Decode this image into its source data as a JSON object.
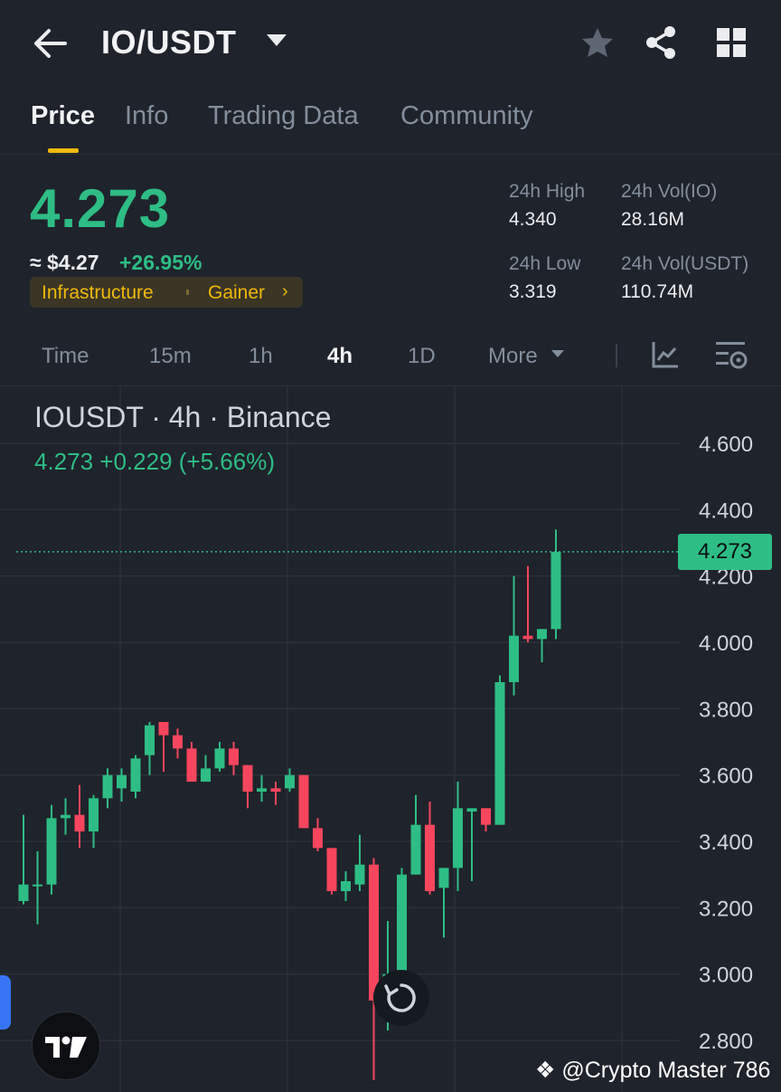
{
  "header": {
    "pair": "IO/USDT",
    "icons": [
      "back-arrow-icon",
      "star-icon",
      "share-icon",
      "grid-icon"
    ]
  },
  "tabs": [
    {
      "label": "Price",
      "active": true
    },
    {
      "label": "Info",
      "active": false
    },
    {
      "label": "Trading Data",
      "active": false
    },
    {
      "label": "Community",
      "active": false
    }
  ],
  "price_panel": {
    "last_price": "4.273",
    "usd_price": "≈ $4.27",
    "change_pct": "+26.95%",
    "tag_category": "Infrastructure",
    "tag_status": "Gainer",
    "stats": {
      "high_label": "24h High",
      "high_value": "4.340",
      "vol_io_label": "24h Vol(IO)",
      "vol_io_value": "28.16M",
      "low_label": "24h Low",
      "low_value": "3.319",
      "vol_usdt_label": "24h Vol(USDT)",
      "vol_usdt_value": "110.74M"
    }
  },
  "intervals": [
    {
      "label": "Time",
      "active": false
    },
    {
      "label": "15m",
      "active": false
    },
    {
      "label": "1h",
      "active": false
    },
    {
      "label": "4h",
      "active": true
    },
    {
      "label": "1D",
      "active": false
    },
    {
      "label": "More",
      "active": false
    }
  ],
  "chart_header": {
    "symbol_line": "IOUSDT · 4h · Binance",
    "ohlc_line": "4.273  +0.229 (+5.66%)"
  },
  "current_price_tag": "4.273",
  "watermark": "@Crypto Master 786",
  "colors": {
    "up": "#2ebd85",
    "down": "#f6465d",
    "accent": "#f0b90b",
    "bg": "#1f232b"
  },
  "chart_data": {
    "type": "candlestick",
    "ylim": [
      2.7,
      4.75
    ],
    "y_ticks": [
      "4.600",
      "4.400",
      "4.200",
      "4.000",
      "3.800",
      "3.600",
      "3.400",
      "3.200",
      "3.000",
      "2.800"
    ],
    "last": 4.273,
    "candles": [
      {
        "o": 3.22,
        "h": 3.48,
        "l": 3.21,
        "c": 3.27
      },
      {
        "o": 3.27,
        "h": 3.37,
        "l": 3.15,
        "c": 3.27
      },
      {
        "o": 3.27,
        "h": 3.51,
        "l": 3.24,
        "c": 3.47
      },
      {
        "o": 3.47,
        "h": 3.53,
        "l": 3.42,
        "c": 3.48
      },
      {
        "o": 3.48,
        "h": 3.57,
        "l": 3.38,
        "c": 3.43
      },
      {
        "o": 3.43,
        "h": 3.54,
        "l": 3.38,
        "c": 3.53
      },
      {
        "o": 3.53,
        "h": 3.62,
        "l": 3.5,
        "c": 3.6
      },
      {
        "o": 3.56,
        "h": 3.62,
        "l": 3.52,
        "c": 3.6
      },
      {
        "o": 3.55,
        "h": 3.66,
        "l": 3.53,
        "c": 3.65
      },
      {
        "o": 3.66,
        "h": 3.76,
        "l": 3.6,
        "c": 3.75
      },
      {
        "o": 3.76,
        "h": 3.76,
        "l": 3.61,
        "c": 3.72
      },
      {
        "o": 3.72,
        "h": 3.74,
        "l": 3.65,
        "c": 3.68
      },
      {
        "o": 3.68,
        "h": 3.7,
        "l": 3.58,
        "c": 3.58
      },
      {
        "o": 3.58,
        "h": 3.66,
        "l": 3.58,
        "c": 3.62
      },
      {
        "o": 3.62,
        "h": 3.7,
        "l": 3.61,
        "c": 3.68
      },
      {
        "o": 3.68,
        "h": 3.7,
        "l": 3.6,
        "c": 3.63
      },
      {
        "o": 3.63,
        "h": 3.63,
        "l": 3.5,
        "c": 3.55
      },
      {
        "o": 3.55,
        "h": 3.6,
        "l": 3.52,
        "c": 3.56
      },
      {
        "o": 3.56,
        "h": 3.58,
        "l": 3.51,
        "c": 3.55
      },
      {
        "o": 3.56,
        "h": 3.62,
        "l": 3.55,
        "c": 3.6
      },
      {
        "o": 3.6,
        "h": 3.6,
        "l": 3.44,
        "c": 3.44
      },
      {
        "o": 3.44,
        "h": 3.47,
        "l": 3.37,
        "c": 3.38
      },
      {
        "o": 3.38,
        "h": 3.38,
        "l": 3.24,
        "c": 3.25
      },
      {
        "o": 3.25,
        "h": 3.31,
        "l": 3.22,
        "c": 3.28
      },
      {
        "o": 3.27,
        "h": 3.42,
        "l": 3.25,
        "c": 3.33
      },
      {
        "o": 3.33,
        "h": 3.35,
        "l": 2.68,
        "c": 2.92
      },
      {
        "o": 2.92,
        "h": 3.16,
        "l": 2.83,
        "c": 3.0
      },
      {
        "o": 2.97,
        "h": 3.32,
        "l": 2.91,
        "c": 3.3
      },
      {
        "o": 3.3,
        "h": 3.54,
        "l": 3.3,
        "c": 3.45
      },
      {
        "o": 3.45,
        "h": 3.52,
        "l": 3.24,
        "c": 3.25
      },
      {
        "o": 3.26,
        "h": 3.32,
        "l": 3.11,
        "c": 3.32
      },
      {
        "o": 3.32,
        "h": 3.58,
        "l": 3.25,
        "c": 3.5
      },
      {
        "o": 3.49,
        "h": 3.5,
        "l": 3.28,
        "c": 3.5
      },
      {
        "o": 3.5,
        "h": 3.5,
        "l": 3.43,
        "c": 3.45
      },
      {
        "o": 3.45,
        "h": 3.9,
        "l": 3.45,
        "c": 3.88
      },
      {
        "o": 3.88,
        "h": 4.2,
        "l": 3.84,
        "c": 4.02
      },
      {
        "o": 4.02,
        "h": 4.23,
        "l": 4.0,
        "c": 4.01
      },
      {
        "o": 4.01,
        "h": 4.04,
        "l": 3.94,
        "c": 4.04
      },
      {
        "o": 4.04,
        "h": 4.34,
        "l": 4.01,
        "c": 4.273
      }
    ]
  }
}
